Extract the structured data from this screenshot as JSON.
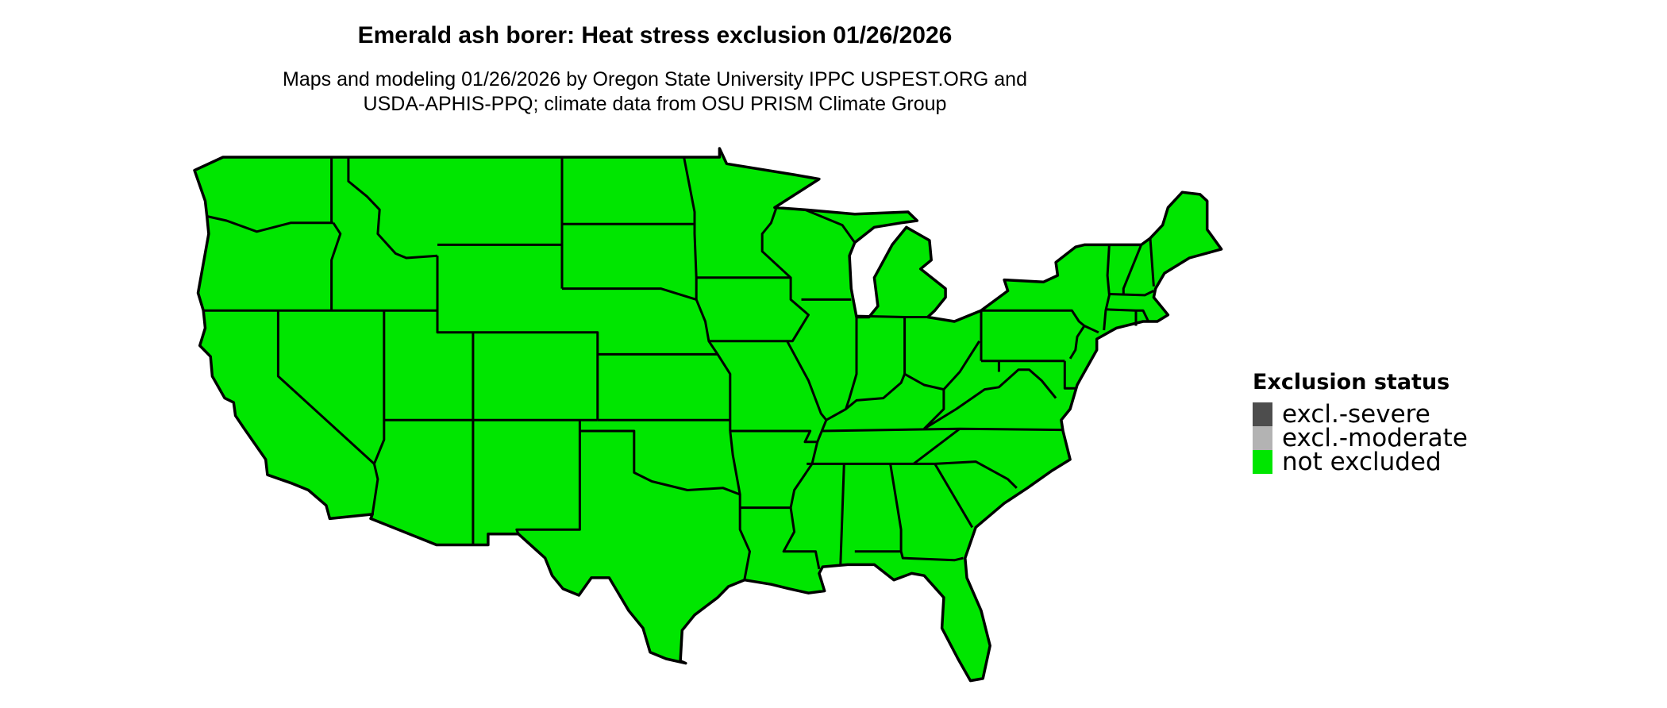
{
  "title": "Emerald ash borer: Heat stress exclusion 01/26/2026",
  "subtitle_lines": [
    "Maps and modeling 01/26/2026 by Oregon State University IPPC USPEST.ORG and",
    "USDA-APHIS-PPQ; climate data from OSU PRISM Climate Group"
  ],
  "map": {
    "region": "Contiguous United States",
    "fill_status": "not excluded",
    "fill_color": "#00e600",
    "border_color": "#000000"
  },
  "legend": {
    "title": "Exclusion status",
    "items": [
      {
        "label": "excl.-severe",
        "color": "#4d4d4d"
      },
      {
        "label": "excl.-moderate",
        "color": "#b3b3b3"
      },
      {
        "label": "not excluded",
        "color": "#00e600"
      }
    ]
  }
}
